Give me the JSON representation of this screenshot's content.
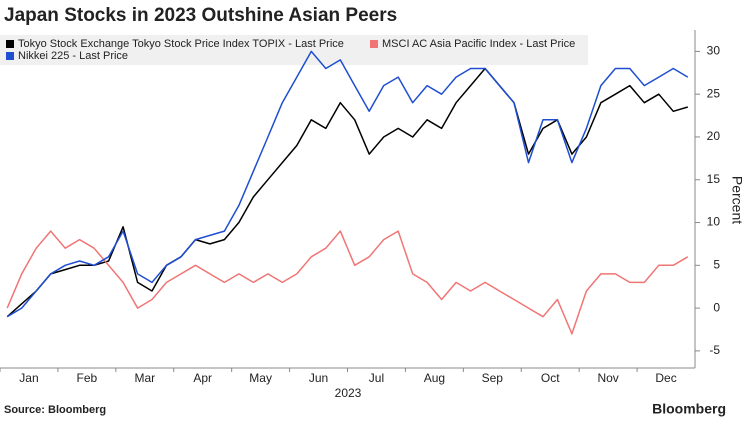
{
  "chart_data": {
    "type": "line",
    "title": "Japan Stocks in 2023 Outshine Asian Peers",
    "x_label": "2023",
    "y_label": "Percent",
    "source": "Source: Bloomberg",
    "brand": "Bloomberg",
    "categories": [
      null,
      null,
      "Jan",
      null,
      null,
      null,
      "Feb",
      null,
      null,
      null,
      "Mar",
      null,
      null,
      null,
      "Apr",
      null,
      null,
      null,
      "May",
      null,
      null,
      null,
      "Jun",
      null,
      null,
      null,
      "Jul",
      null,
      null,
      null,
      "Aug",
      null,
      null,
      null,
      "Sep",
      null,
      null,
      null,
      "Oct",
      null,
      null,
      null,
      "Nov",
      null,
      null,
      null,
      "Dec",
      null
    ],
    "series": [
      {
        "name": "Tokyo Stock Exchange Tokyo Stock Price Index TOPIX - Last Price",
        "color": "#000000",
        "values": [
          -1,
          0.5,
          2,
          4,
          4.5,
          5,
          5,
          5.5,
          9.5,
          3,
          2,
          5,
          6,
          8,
          7.5,
          8,
          10,
          13,
          15,
          17,
          19,
          22,
          21,
          24,
          22,
          18,
          20,
          21,
          20,
          22,
          21,
          24,
          26,
          28,
          26,
          24,
          18,
          21,
          22,
          18,
          20,
          24,
          25,
          26,
          24,
          25,
          23,
          23.5
        ]
      },
      {
        "name": "MSCI AC Asia Pacific Index - Last Price",
        "color": "#f07575",
        "values": [
          0,
          4,
          7,
          9,
          7,
          8,
          7,
          5,
          3,
          0,
          1,
          3,
          4,
          5,
          4,
          3,
          4,
          3,
          4,
          3,
          4,
          6,
          7,
          9,
          5,
          6,
          8,
          9,
          4,
          3,
          1,
          3,
          2,
          3,
          2,
          1,
          0,
          -1,
          1,
          -3,
          2,
          4,
          4,
          3,
          3,
          5,
          5,
          6
        ]
      },
      {
        "name": "Nikkei 225 - Last Price",
        "color": "#1f4fd0",
        "values": [
          -1,
          0,
          2,
          4,
          5,
          5.5,
          5,
          6,
          9,
          4,
          3,
          5,
          6,
          8,
          8.5,
          9,
          12,
          16,
          20,
          24,
          27,
          30,
          28,
          29,
          26,
          23,
          26,
          27,
          24,
          26,
          25,
          27,
          28,
          28,
          26,
          24,
          17,
          22,
          22,
          17,
          21,
          26,
          28,
          28,
          26,
          27,
          28,
          27
        ]
      }
    ],
    "ylim": [
      -7,
      32.5
    ],
    "yticks": [
      -5,
      0,
      5,
      10,
      15,
      20,
      25,
      30
    ],
    "grid": false
  }
}
